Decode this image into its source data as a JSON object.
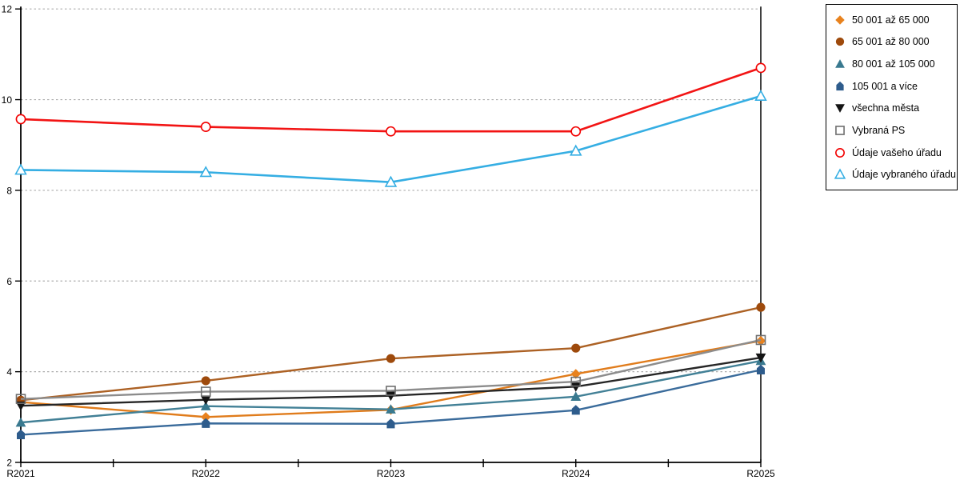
{
  "chart_data": {
    "type": "line",
    "title": "",
    "xlabel": "",
    "ylabel": "",
    "categories": [
      "R2021",
      "R2022",
      "R2023",
      "R2024",
      "R2025"
    ],
    "yticks": [
      2,
      4,
      6,
      8,
      10,
      12
    ],
    "ylim": [
      2,
      12
    ],
    "grid": "horizontal dotted at yticks",
    "legend_position": "right-outside",
    "series": [
      {
        "name": "50 001 až 65 000",
        "marker": "diamond",
        "filled": true,
        "color": "#E8821E",
        "line_color": "#E07C1C",
        "values": [
          3.33,
          3.0,
          3.16,
          3.95,
          4.68
        ]
      },
      {
        "name": "65 001 až 80 000",
        "marker": "circle",
        "filled": true,
        "color": "#9E4A0C",
        "line_color": "#AC6124",
        "values": [
          3.37,
          3.8,
          4.29,
          4.52,
          5.42
        ]
      },
      {
        "name": "80 001 až 105 000",
        "marker": "triangle",
        "filled": true,
        "color": "#39798F",
        "line_color": "#428096",
        "values": [
          2.88,
          3.24,
          3.17,
          3.45,
          4.24
        ]
      },
      {
        "name": "105 001 a více",
        "marker": "house",
        "filled": true,
        "color": "#2E5C8C",
        "line_color": "#3A6B9B",
        "values": [
          2.61,
          2.86,
          2.85,
          3.15,
          4.04
        ]
      },
      {
        "name": "všechna města",
        "marker": "triangle-down",
        "filled": true,
        "color": "#141414",
        "line_color": "#262626",
        "values": [
          3.25,
          3.38,
          3.47,
          3.67,
          4.31
        ]
      },
      {
        "name": "Vybraná PS",
        "marker": "square",
        "filled": false,
        "color": "#6F6F6F",
        "line_color": "#8C8C8C",
        "values": [
          3.4,
          3.56,
          3.58,
          3.78,
          4.7
        ]
      },
      {
        "name": "Údaje vašeho úřadu",
        "marker": "circle",
        "filled": false,
        "color": "#F20000",
        "line_color": "#F21414",
        "values": [
          9.57,
          9.4,
          9.3,
          9.3,
          10.7
        ]
      },
      {
        "name": "Údaje vybraného úřadu",
        "marker": "triangle",
        "filled": false,
        "color": "#35AEE3",
        "line_color": "#35AEE3",
        "values": [
          8.45,
          8.4,
          8.18,
          8.87,
          10.08
        ]
      }
    ]
  },
  "colors": {
    "axis": "#000000",
    "grid": "#ADADAD",
    "background": "#FFFFFF",
    "text": "#000000"
  }
}
